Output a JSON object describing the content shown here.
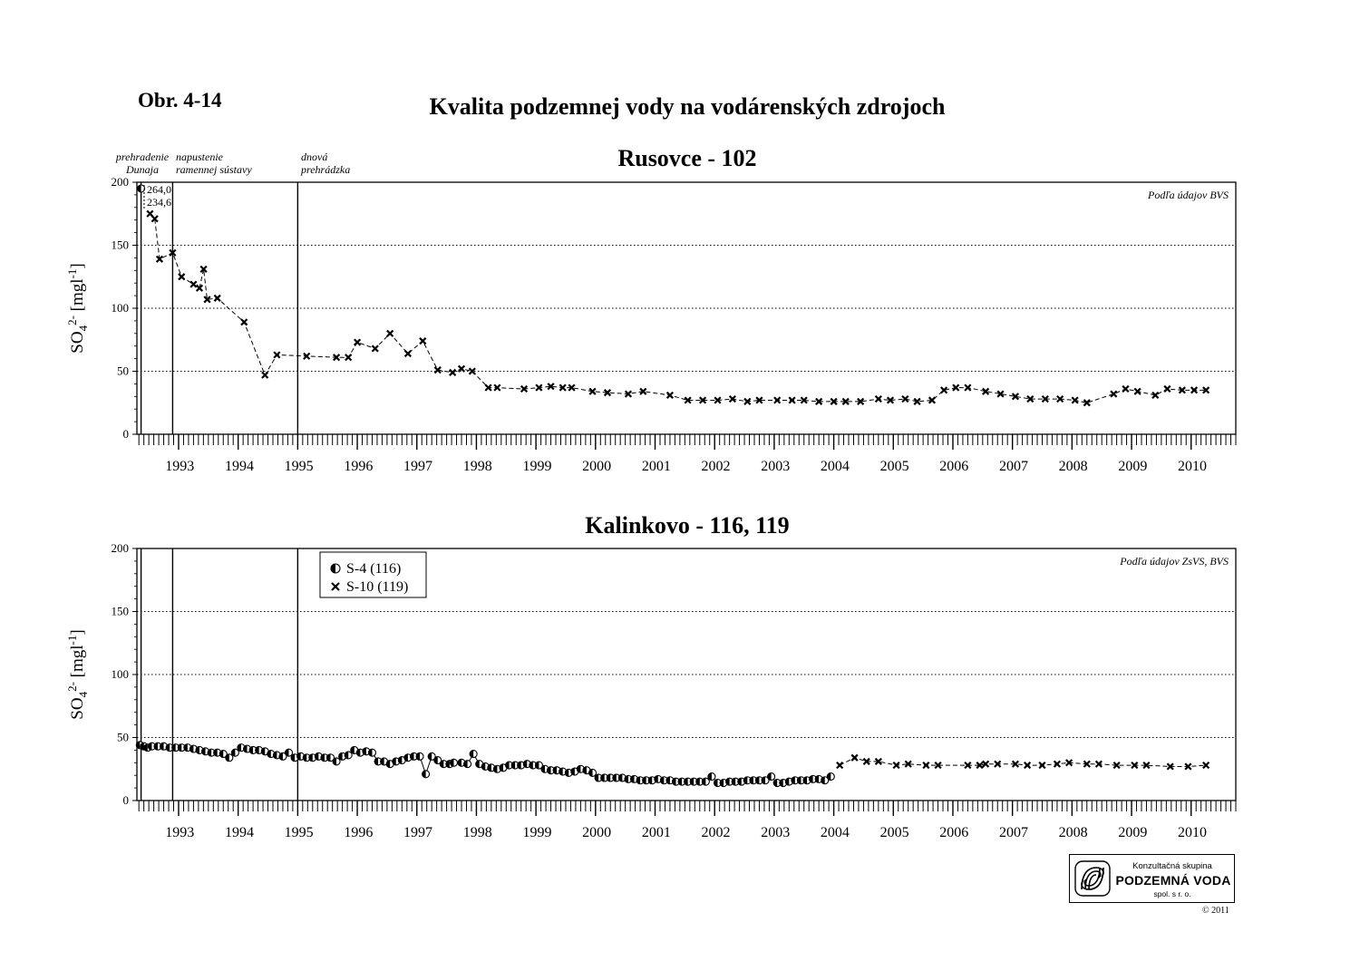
{
  "figure": {
    "label": "Obr. 4-14",
    "title": "Kvalita podzemnej vody na vodárenských zdrojoch"
  },
  "logo": {
    "line1": "Konzultačná skupina",
    "line2": "PODZEMNÁ VODA",
    "line3": "spol. s r. o."
  },
  "copyright": "© 2011",
  "chart_data": [
    {
      "type": "scatter",
      "title": "Rusovce - 102",
      "ylabel": "SO42- [mgl-1]",
      "source_note": "Podľa údajov BVS",
      "xlim": [
        1992.3,
        2010.75
      ],
      "ylim": [
        0,
        200
      ],
      "yticks": [
        0,
        50,
        100,
        150,
        200
      ],
      "x_tick_labels": [
        "1993",
        "1994",
        "1995",
        "1996",
        "1997",
        "1998",
        "1999",
        "2000",
        "2001",
        "2002",
        "2003",
        "2004",
        "2005",
        "2006",
        "2007",
        "2008",
        "2009",
        "2010"
      ],
      "grid": "horizontal dotted",
      "events": [
        {
          "x": 1992.37,
          "label_lines": [
            "prehradenie",
            "Dunaja"
          ]
        },
        {
          "x": 1992.9,
          "label_lines": [
            "napustenie",
            "ramennej sústavy"
          ]
        },
        {
          "x": 1995.0,
          "label_lines": [
            "dnová",
            "prehrádzka"
          ]
        }
      ],
      "annotations": [
        "264,0",
        "234,6"
      ],
      "series": [
        {
          "name": "",
          "marker": "halfcircle",
          "line": "none",
          "x": [
            1992.37
          ],
          "y": [
            195
          ]
        },
        {
          "name": "",
          "marker": "cross",
          "line": "dashed",
          "x": [
            1992.52,
            1992.6,
            1992.68,
            1992.9,
            1993.05,
            1993.25,
            1993.35,
            1993.42,
            1993.48,
            1993.65,
            1994.1,
            1994.45,
            1994.65,
            1995.15,
            1995.65,
            1995.85,
            1996.0,
            1996.3,
            1996.55,
            1996.85,
            1997.1,
            1997.35,
            1997.6,
            1997.75,
            1997.93,
            1998.2,
            1998.35,
            1998.8,
            1999.05,
            1999.25,
            1999.45,
            1999.6,
            1999.95,
            2000.2,
            2000.55,
            2000.8,
            2001.25,
            2001.55,
            2001.8,
            2002.05,
            2002.3,
            2002.55,
            2002.75,
            2003.05,
            2003.3,
            2003.5,
            2003.75,
            2004.0,
            2004.2,
            2004.45,
            2004.75,
            2004.95,
            2005.2,
            2005.4,
            2005.65,
            2005.85,
            2006.05,
            2006.25,
            2006.55,
            2006.8,
            2007.05,
            2007.3,
            2007.55,
            2007.8,
            2008.05,
            2008.25,
            2008.7,
            2008.9,
            2009.1,
            2009.4,
            2009.6,
            2009.85,
            2010.05,
            2010.25
          ],
          "y": [
            175,
            171,
            139,
            144,
            125,
            119,
            116,
            131,
            107,
            108,
            89,
            47,
            63,
            62,
            61,
            61,
            73,
            68,
            80,
            64,
            74,
            51,
            49,
            52,
            50,
            37,
            37,
            36,
            37,
            38,
            37,
            37,
            34,
            33,
            32,
            34,
            31,
            27,
            27,
            27,
            28,
            26,
            27,
            27,
            27,
            27,
            26,
            26,
            26,
            26,
            28,
            27,
            28,
            26,
            27,
            35,
            37,
            37,
            34,
            32,
            30,
            28,
            28,
            28,
            27,
            25,
            32,
            36,
            34,
            31,
            36,
            35,
            35,
            35
          ]
        }
      ]
    },
    {
      "type": "scatter",
      "title": "Kalinkovo - 116, 119",
      "ylabel": "SO42- [mgl-1]",
      "source_note": "Podľa údajov ZsVS, BVS",
      "xlim": [
        1992.3,
        2010.75
      ],
      "ylim": [
        0,
        200
      ],
      "yticks": [
        0,
        50,
        100,
        150,
        200
      ],
      "x_tick_labels": [
        "1993",
        "1994",
        "1995",
        "1996",
        "1997",
        "1998",
        "1999",
        "2000",
        "2001",
        "2002",
        "2003",
        "2004",
        "2005",
        "2006",
        "2007",
        "2008",
        "2009",
        "2010"
      ],
      "grid": "horizontal dotted",
      "events": [
        {
          "x": 1992.37,
          "label_lines": []
        },
        {
          "x": 1992.9,
          "label_lines": []
        },
        {
          "x": 1995.0,
          "label_lines": []
        }
      ],
      "legend": {
        "position": "top-left"
      },
      "series": [
        {
          "name": "S-4 (116)",
          "marker": "halfcircle",
          "line": "solid",
          "x": [
            1992.35,
            1992.42,
            1992.48,
            1992.55,
            1992.65,
            1992.75,
            1992.85,
            1992.95,
            1993.05,
            1993.15,
            1993.25,
            1993.35,
            1993.45,
            1993.55,
            1993.65,
            1993.75,
            1993.85,
            1993.95,
            1994.05,
            1994.15,
            1994.25,
            1994.35,
            1994.45,
            1994.55,
            1994.65,
            1994.75,
            1994.85,
            1994.95,
            1995.05,
            1995.15,
            1995.25,
            1995.35,
            1995.45,
            1995.55,
            1995.65,
            1995.75,
            1995.85,
            1995.95,
            1996.05,
            1996.15,
            1996.25,
            1996.35,
            1996.45,
            1996.55,
            1996.65,
            1996.75,
            1996.85,
            1996.95,
            1997.05,
            1997.15,
            1997.25,
            1997.35,
            1997.45,
            1997.55,
            1997.62,
            1997.75,
            1997.85,
            1997.95,
            1998.05,
            1998.15,
            1998.25,
            1998.35,
            1998.45,
            1998.55,
            1998.65,
            1998.75,
            1998.85,
            1998.95,
            1999.05,
            1999.15,
            1999.25,
            1999.35,
            1999.45,
            1999.55,
            1999.65,
            1999.75,
            1999.85,
            1999.95,
            2000.05,
            2000.15,
            2000.25,
            2000.35,
            2000.45,
            2000.55,
            2000.65,
            2000.75,
            2000.85,
            2000.95,
            2001.05,
            2001.15,
            2001.25,
            2001.35,
            2001.45,
            2001.55,
            2001.65,
            2001.75,
            2001.85,
            2001.95,
            2002.05,
            2002.15,
            2002.25,
            2002.35,
            2002.45,
            2002.55,
            2002.65,
            2002.75,
            2002.85,
            2002.95,
            2003.05,
            2003.15,
            2003.25,
            2003.35,
            2003.45,
            2003.55,
            2003.65,
            2003.75,
            2003.85,
            2003.95
          ],
          "y": [
            44,
            43,
            42,
            43,
            43,
            43,
            42,
            42,
            42,
            42,
            41,
            40,
            39,
            38,
            38,
            37,
            34,
            38,
            42,
            41,
            40,
            40,
            39,
            37,
            36,
            35,
            38,
            34,
            35,
            34,
            34,
            35,
            34,
            34,
            31,
            35,
            36,
            40,
            38,
            39,
            38,
            31,
            31,
            29,
            31,
            32,
            34,
            35,
            35,
            21,
            35,
            32,
            29,
            29,
            30,
            30,
            29,
            37,
            29,
            27,
            26,
            25,
            26,
            28,
            28,
            28,
            29,
            28,
            28,
            25,
            24,
            24,
            23,
            22,
            23,
            25,
            24,
            22,
            18,
            18,
            18,
            18,
            18,
            17,
            17,
            16,
            16,
            16,
            17,
            16,
            16,
            15,
            15,
            15,
            15,
            15,
            15,
            19,
            14,
            14,
            15,
            15,
            15,
            16,
            16,
            16,
            16,
            19,
            14,
            14,
            15,
            16,
            16,
            16,
            17,
            17,
            16,
            19
          ]
        },
        {
          "name": "S-10 (119)",
          "marker": "cross",
          "line": "dashed",
          "x": [
            2004.1,
            2004.35,
            2004.55,
            2004.75,
            2005.05,
            2005.25,
            2005.55,
            2005.75,
            2006.25,
            2006.45,
            2006.55,
            2006.75,
            2007.05,
            2007.25,
            2007.5,
            2007.75,
            2007.95,
            2008.25,
            2008.45,
            2008.75,
            2009.05,
            2009.25,
            2009.65,
            2009.95,
            2010.25
          ],
          "y": [
            28,
            34,
            31,
            31,
            28,
            29,
            28,
            28,
            28,
            28,
            29,
            29,
            29,
            28,
            28,
            29,
            30,
            29,
            29,
            28,
            28,
            28,
            27,
            27,
            28
          ]
        }
      ]
    }
  ]
}
